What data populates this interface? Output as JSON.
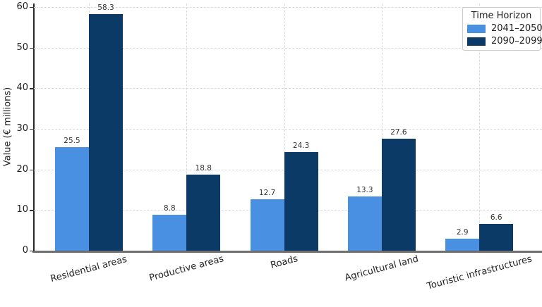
{
  "chart_data": {
    "type": "bar",
    "title": "",
    "categories": [
      "Residential areas",
      "Productive areas",
      "Roads",
      "Agricultural land",
      "Touristic infrastructures"
    ],
    "series": [
      {
        "name": "2041–2050",
        "color": "#4a90e2",
        "values": [
          25.5,
          8.8,
          12.7,
          13.3,
          2.9
        ]
      },
      {
        "name": "2090–2099",
        "color": "#0b3a67",
        "values": [
          58.3,
          18.8,
          24.3,
          27.6,
          6.6
        ]
      }
    ],
    "xlabel": "",
    "ylabel": "Value (€ millions)",
    "ylim": [
      0,
      60.87
    ],
    "yticks": [
      0,
      10,
      20,
      30,
      40,
      50,
      60
    ],
    "grid": true,
    "grid_style": "dashed",
    "value_labels": true,
    "legend": {
      "title": "Time Horizon",
      "position": "upper right"
    }
  }
}
